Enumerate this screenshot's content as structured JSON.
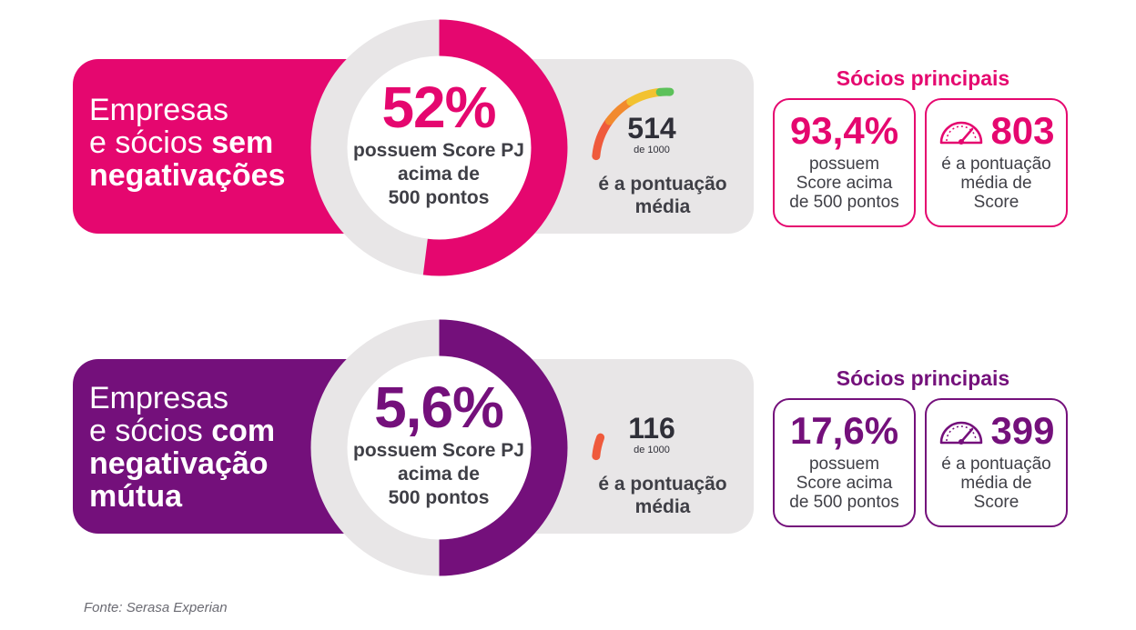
{
  "chart_data": [
    {
      "type": "donut",
      "group": "sem",
      "title_parts": [
        "Empresas",
        "e sócios",
        "sem",
        "negativações"
      ],
      "pct_label": "52%",
      "pct_value": 52,
      "pct_desc": [
        "possuem Score PJ",
        "acima de",
        "500 pontos"
      ],
      "meter": {
        "value": 514,
        "value_label": "514",
        "max": 1000,
        "scale_label": "de 1000",
        "caption": [
          "é a pontuação",
          "média"
        ]
      },
      "socios": {
        "title": "Sócios principais",
        "pct_label": "93,4%",
        "pct_desc": [
          "possuem",
          "Score acima",
          "de 500 pontos"
        ],
        "score_label": "803",
        "score_desc": [
          "é a pontuação",
          "média de",
          "Score"
        ]
      },
      "colors": {
        "accent": "#e5076f"
      }
    },
    {
      "type": "donut",
      "group": "com",
      "title_parts": [
        "Empresas",
        "e sócios",
        "com",
        "negativação",
        "mútua"
      ],
      "pct_label": "5,6%",
      "pct_value": 5.6,
      "pct_desc": [
        "possuem Score PJ",
        "acima de",
        "500 pontos"
      ],
      "meter": {
        "value": 116,
        "value_label": "116",
        "max": 1000,
        "scale_label": "de 1000",
        "caption": [
          "é a pontuação",
          "média"
        ]
      },
      "socios": {
        "title": "Sócios principais",
        "pct_label": "17,6%",
        "pct_desc": [
          "possuem",
          "Score acima",
          "de 500 pontos"
        ],
        "score_label": "399",
        "score_desc": [
          "é a pontuação",
          "média de",
          "Score"
        ]
      },
      "colors": {
        "accent": "#74107b"
      }
    }
  ],
  "source": "Fonte: Serasa Experian",
  "colors": {
    "ring_track": "#e8e6e7",
    "meter_track": "#e8e6e7",
    "meter_red": "#ef5a3c",
    "meter_orange": "#f28a2e",
    "meter_yellow": "#f2c230",
    "meter_green": "#5cc15a"
  }
}
